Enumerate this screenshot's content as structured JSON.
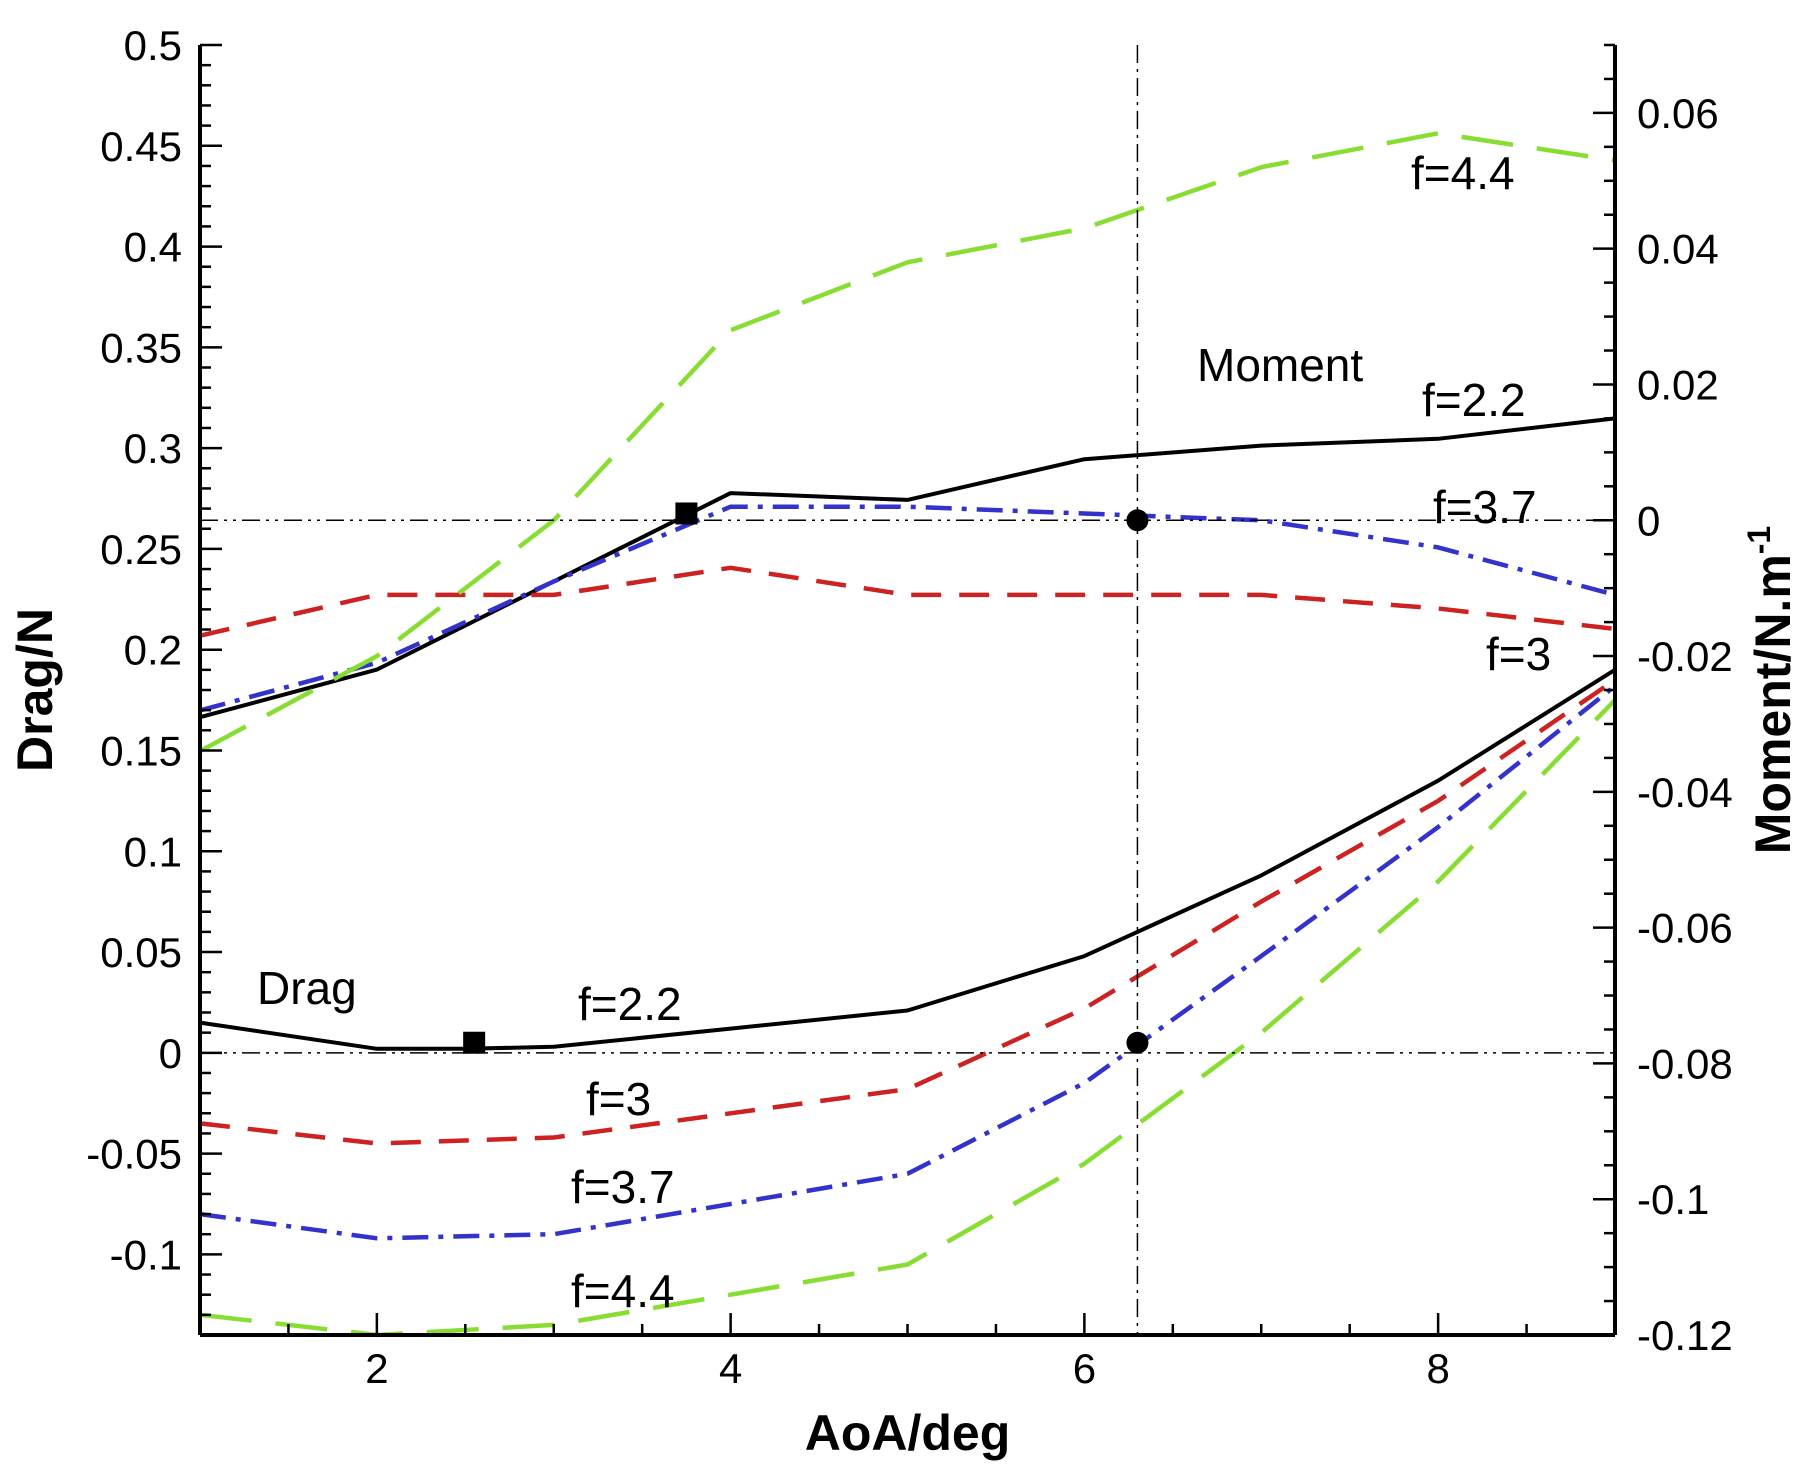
{
  "chart_data": {
    "type": "line",
    "title": "",
    "xlabel": "AoA/deg",
    "ylabel_left": "Drag/N",
    "ylabel_right": "Moment/N.m",
    "ylabel_right_sup": "-1",
    "xlim": [
      1,
      9
    ],
    "ylim_left": [
      -0.14,
      0.5
    ],
    "ylim_right": [
      -0.12,
      0.07
    ],
    "x_ticks": [
      2,
      4,
      6,
      8
    ],
    "y_left_ticks": [
      "-0.1",
      "-0.05",
      "0",
      "0.05",
      "0.1",
      "0.15",
      "0.2",
      "0.25",
      "0.3",
      "0.35",
      "0.4",
      "0.45",
      "0.5"
    ],
    "y_right_ticks": [
      "-0.12",
      "-0.1",
      "-0.08",
      "-0.06",
      "-0.04",
      "-0.02",
      "0",
      "0.02",
      "0.04",
      "0.06"
    ],
    "grid": false,
    "series": [
      {
        "name": "Drag f=2.2",
        "group": "drag",
        "axis": "left",
        "style": "solid",
        "color": "#000000",
        "x": [
          1,
          2,
          2.5,
          3,
          4,
          5,
          6,
          7,
          8,
          9
        ],
        "values": [
          0.015,
          0.002,
          0.002,
          0.003,
          0.012,
          0.021,
          0.048,
          0.088,
          0.135,
          0.19
        ]
      },
      {
        "name": "Drag f=3",
        "group": "drag",
        "axis": "left",
        "style": "dashed",
        "color": "#cc2222",
        "x": [
          1,
          2,
          3,
          4,
          5,
          6,
          7,
          8,
          9
        ],
        "values": [
          -0.035,
          -0.045,
          -0.042,
          -0.03,
          -0.018,
          0.022,
          0.075,
          0.125,
          0.185
        ]
      },
      {
        "name": "Drag f=3.7",
        "group": "drag",
        "axis": "left",
        "style": "dashdot",
        "color": "#3333cc",
        "x": [
          1,
          2,
          3,
          4,
          5,
          6,
          7,
          8,
          9
        ],
        "values": [
          -0.08,
          -0.092,
          -0.09,
          -0.075,
          -0.06,
          -0.015,
          0.048,
          0.112,
          0.182
        ]
      },
      {
        "name": "Drag f=4.4",
        "group": "drag",
        "axis": "left",
        "style": "longdash",
        "color": "#88dd33",
        "x": [
          1,
          2,
          3,
          4,
          5,
          6,
          7,
          8,
          9
        ],
        "values": [
          -0.13,
          -0.14,
          -0.135,
          -0.12,
          -0.105,
          -0.055,
          0.01,
          0.085,
          0.175
        ]
      },
      {
        "name": "Moment f=2.2",
        "group": "moment",
        "axis": "right",
        "style": "solid",
        "color": "#000000",
        "x": [
          1,
          2,
          3,
          4,
          5,
          6,
          7,
          8,
          9
        ],
        "values": [
          -0.029,
          -0.022,
          -0.009,
          0.004,
          0.003,
          0.009,
          0.011,
          0.012,
          0.015
        ]
      },
      {
        "name": "Moment f=3",
        "group": "moment",
        "axis": "right",
        "style": "dashed",
        "color": "#cc2222",
        "x": [
          1,
          2,
          3,
          4,
          5,
          6,
          7,
          8,
          9
        ],
        "values": [
          -0.017,
          -0.011,
          -0.011,
          -0.007,
          -0.011,
          -0.011,
          -0.011,
          -0.013,
          -0.016
        ]
      },
      {
        "name": "Moment f=3.7",
        "group": "moment",
        "axis": "right",
        "style": "dashdot",
        "color": "#3333cc",
        "x": [
          1,
          2,
          3,
          4,
          5,
          6,
          7,
          8,
          9
        ],
        "values": [
          -0.028,
          -0.021,
          -0.009,
          0.002,
          0.002,
          0.001,
          0.0,
          -0.004,
          -0.011
        ]
      },
      {
        "name": "Moment f=4.4",
        "group": "moment",
        "axis": "right",
        "style": "longdash",
        "color": "#88dd33",
        "x": [
          1,
          2,
          3,
          4,
          5,
          6,
          7,
          8,
          9
        ],
        "values": [
          -0.034,
          -0.02,
          0.0,
          0.028,
          0.038,
          0.043,
          0.052,
          0.057,
          0.053
        ]
      }
    ],
    "markers": [
      {
        "shape": "square",
        "axis": "left",
        "x": 2.55,
        "y": 0.005
      },
      {
        "shape": "square",
        "axis": "right",
        "x": 3.75,
        "y": 0.001
      },
      {
        "shape": "circle",
        "axis": "left",
        "x": 6.3,
        "y": 0.005
      },
      {
        "shape": "circle",
        "axis": "right",
        "x": 6.3,
        "y": 0.0
      }
    ],
    "reference_lines": [
      {
        "orientation": "horizontal",
        "axis": "left",
        "value": 0.0
      },
      {
        "orientation": "horizontal",
        "axis": "right",
        "value": 0.0
      },
      {
        "orientation": "vertical",
        "value": 6.3
      }
    ],
    "annotations": [
      {
        "text": "Drag"
      },
      {
        "text": "f=2.2"
      },
      {
        "text": "f=3"
      },
      {
        "text": "f=3.7"
      },
      {
        "text": "f=4.4"
      },
      {
        "text": "Moment"
      },
      {
        "text": "f=2.2"
      },
      {
        "text": "f=3.7"
      },
      {
        "text": "f=3"
      },
      {
        "text": "f=4.4"
      }
    ]
  }
}
